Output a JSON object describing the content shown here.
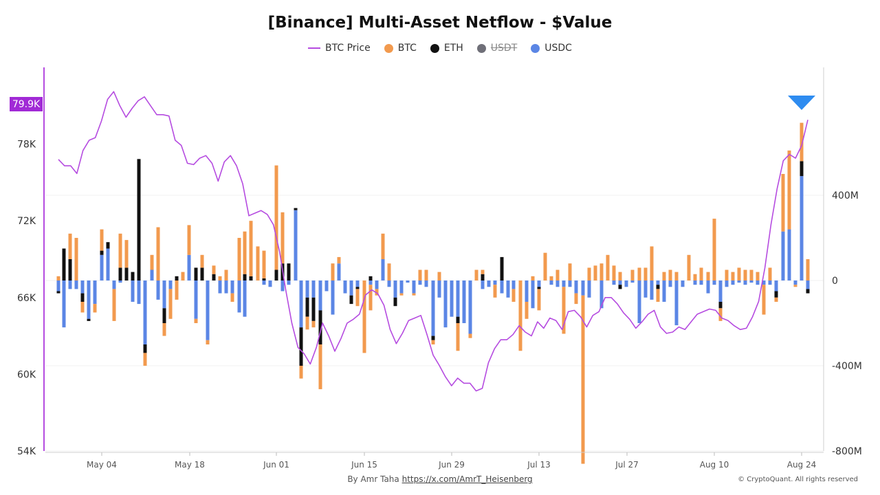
{
  "title": "[Binance] Multi-Asset Netflow - $Value",
  "legend": [
    {
      "label": "BTC Price",
      "kind": "line",
      "color": "#b54be0",
      "active": true
    },
    {
      "label": "BTC",
      "kind": "dot",
      "color": "#f29a4e",
      "active": true
    },
    {
      "label": "ETH",
      "kind": "dot",
      "color": "#111111",
      "active": true
    },
    {
      "label": "USDT",
      "kind": "dot",
      "color": "#6f6f78",
      "active": false
    },
    {
      "label": "USDC",
      "kind": "dot",
      "color": "#5b86e5",
      "active": true
    }
  ],
  "footer": {
    "author_prefix": "By Amr Taha",
    "author_link": "https://x.com/AmrT_Heisenberg",
    "copyright": "© CryptoQuant. All rights reserved"
  },
  "price_badge": "79.9K",
  "colors": {
    "btc": "#f29a4e",
    "eth": "#111111",
    "usdc": "#5b86e5",
    "price": "#b54be0",
    "marker": "#2e8cf0",
    "badge": "#a12ad6"
  },
  "chart_data": {
    "type": "bar",
    "title": "[Binance] Multi-Asset Netflow - $Value",
    "left_axis": {
      "label": "BTC Price",
      "range": [
        54000,
        84000
      ],
      "ticks": [
        "54K",
        "60K",
        "66K",
        "72K",
        "78K"
      ],
      "tick_values": [
        54000,
        60000,
        66000,
        72000,
        78000
      ]
    },
    "right_axis": {
      "label": "Netflow ($)",
      "range": [
        -800000000,
        1000000000
      ],
      "ticks": [
        "-800M",
        "-400M",
        "0",
        "400M"
      ],
      "tick_values": [
        -800000000,
        -400000000,
        0,
        400000000
      ]
    },
    "x_axis": {
      "start": "2024-04-22",
      "end": "2024-08-25",
      "ticks": [
        "May 04",
        "May 18",
        "Jun 01",
        "Jun 15",
        "Jun 29",
        "Jul 13",
        "Jul 27",
        "Aug 10",
        "Aug 24"
      ]
    },
    "series": [
      {
        "name": "BTC Price",
        "type": "line",
        "values": [
          76800,
          76300,
          76300,
          75700,
          77500,
          78300,
          78500,
          79800,
          81500,
          82100,
          81000,
          80100,
          80800,
          81400,
          81700,
          81000,
          80300,
          80300,
          80200,
          78300,
          77900,
          76500,
          76400,
          76900,
          77100,
          76500,
          75100,
          76600,
          77100,
          76300,
          74900,
          72400,
          72600,
          72800,
          72500,
          71700,
          69600,
          66600,
          64000,
          62100,
          61600,
          60800,
          62100,
          64000,
          63000,
          61800,
          62800,
          64000,
          64300,
          64700,
          66200,
          66600,
          66300,
          65400,
          63500,
          62400,
          63200,
          64200,
          64400,
          64600,
          63100,
          61500,
          60700,
          59800,
          59100,
          59700,
          59300,
          59300,
          58700,
          58900,
          60900,
          62000,
          62700,
          62700,
          63100,
          63800,
          63300,
          63000,
          64100,
          63600,
          64400,
          64200,
          63500,
          64900,
          65000,
          64500,
          63700,
          64600,
          64900,
          66000,
          66000,
          65500,
          64800,
          64300,
          63600,
          64100,
          64700,
          65000,
          63700,
          63200,
          63300,
          63700,
          63500,
          64100,
          64700,
          64900,
          65100,
          65000,
          64400,
          64200,
          63800,
          63500,
          63600,
          64500,
          65700,
          68300,
          71700,
          74500,
          76700,
          77200,
          76900,
          77900,
          79900
        ]
      },
      {
        "name": "BTC",
        "unit": "USD",
        "values": [
          20,
          -240,
          200,
          -300,
          330,
          -230,
          -210,
          -200,
          -190,
          -220,
          -220,
          160,
          60,
          300,
          -110,
          180,
          190,
          -180,
          -260,
          280,
          -210,
          -280,
          20,
          40,
          60,
          -20,
          60,
          120,
          180,
          -160,
          -90,
          -40,
          60,
          -70,
          120,
          220,
          90,
          60,
          70,
          30,
          440,
          200,
          -20,
          -130,
          -20,
          -90,
          -250,
          -100,
          -180,
          -140,
          -70,
          -60,
          -40,
          -100,
          -40,
          -200,
          -20,
          -30,
          -40,
          -330,
          0,
          -80,
          -70,
          -120,
          -20,
          -30,
          -100,
          -40,
          -100,
          -130,
          -310,
          -80,
          -60,
          -80,
          -50,
          -20,
          -20,
          -40,
          -20,
          -80,
          -10,
          -60,
          -160,
          -130,
          -90,
          60,
          -120,
          -20,
          -130,
          -30,
          -30,
          -70,
          -320,
          -30,
          -30,
          -10,
          -40,
          -20,
          -30,
          -80,
          -60,
          -30,
          -30,
          -60,
          -10,
          -60,
          -30,
          -10,
          -100,
          -140,
          -110,
          -60,
          -30,
          -20,
          -20,
          -230,
          -100,
          -30,
          -40,
          -30,
          -80,
          -40,
          -100,
          -20,
          360,
          340,
          -70,
          -140,
          -60,
          -10,
          -120,
          -70,
          -190,
          -50,
          -10,
          -70,
          -30,
          -30,
          -10,
          -70,
          -200,
          -170,
          -150,
          -220,
          -80,
          -20,
          -20,
          -10,
          -20,
          -20,
          -20,
          -20,
          -30,
          -30,
          -30,
          -40,
          -40,
          -40,
          -40,
          -40,
          -40,
          -40,
          -40,
          -30,
          -30,
          -20,
          -10
        ]
      },
      {
        "name": "ETH",
        "unit": "USD",
        "values": [
          0,
          0,
          0,
          0,
          0,
          0,
          0,
          0,
          0,
          0,
          0,
          0,
          0,
          0,
          0,
          0,
          0,
          0,
          0,
          0,
          0,
          0,
          0,
          0,
          0,
          0,
          0,
          0,
          0,
          0,
          0,
          0,
          0,
          0,
          0,
          0,
          0,
          0,
          0,
          0,
          0,
          0,
          0,
          0,
          0,
          0,
          0,
          0,
          0,
          0,
          0,
          0,
          0,
          0,
          0,
          0,
          0,
          0,
          0,
          0,
          0,
          0,
          0,
          0,
          0,
          0,
          0,
          0,
          0,
          0,
          0,
          0,
          0,
          0,
          0,
          0,
          0,
          0,
          0,
          0,
          0,
          0,
          0,
          0,
          0,
          0,
          0,
          0,
          0,
          0,
          0,
          0,
          0,
          0,
          0,
          0,
          0,
          0,
          0,
          0,
          0,
          0,
          0,
          0,
          0,
          0,
          0,
          0,
          0,
          0,
          0,
          0,
          0,
          0,
          0,
          0,
          0,
          0,
          0,
          0,
          0,
          0,
          0,
          0,
          0,
          0,
          0,
          0,
          0,
          0,
          0,
          0,
          0,
          0,
          0,
          0,
          0,
          0,
          0,
          0,
          0,
          0,
          0,
          0,
          0,
          0,
          0,
          0,
          0,
          0,
          0,
          0,
          0,
          0,
          0,
          0,
          0,
          0,
          0,
          0,
          0,
          0,
          0,
          0,
          0,
          0,
          0,
          0,
          0,
          0,
          0,
          0
        ]
      },
      {
        "name": "USDC",
        "unit": "USD",
        "values": [
          0,
          0,
          0,
          0,
          0,
          0,
          0,
          0,
          0,
          0,
          0,
          0,
          0,
          0,
          0,
          0,
          0,
          0,
          0,
          0,
          0,
          0,
          0,
          0,
          0,
          0,
          0,
          0,
          0,
          0,
          0,
          0,
          0,
          0,
          0,
          0,
          0,
          0,
          0,
          0,
          0,
          0,
          0,
          0,
          0,
          0,
          0,
          0,
          0,
          0,
          0,
          0,
          0,
          0,
          0,
          0,
          0,
          0,
          0,
          0,
          0,
          0,
          0,
          0,
          0,
          0,
          0,
          0,
          0,
          0,
          0,
          0,
          0,
          0,
          0,
          0,
          0,
          0,
          0,
          0,
          0,
          0,
          0,
          0,
          0,
          0,
          0,
          0,
          0,
          0,
          0,
          0,
          0,
          0,
          0,
          0,
          0,
          0,
          0,
          0,
          0,
          0,
          0,
          0,
          0,
          0,
          0,
          0,
          0,
          0,
          0,
          0,
          0,
          0,
          0,
          0,
          0,
          0,
          0,
          0,
          0,
          0,
          0,
          0,
          0,
          0,
          0,
          0,
          0,
          0,
          0,
          0,
          0,
          0,
          0,
          0,
          0,
          0,
          0,
          0,
          0,
          0,
          0,
          0,
          0,
          0,
          0,
          0,
          0,
          0,
          0,
          0,
          0,
          0,
          0,
          0,
          0,
          0,
          0,
          0,
          0,
          0,
          0,
          0,
          0,
          0,
          0,
          0,
          0,
          0,
          0,
          0
        ]
      }
    ],
    "bars": [
      {
        "btc": 20,
        "eth": -30,
        "usdc": -60
      },
      {
        "btc": -240,
        "eth": 150,
        "usdc": -220
      },
      {
        "btc": 240,
        "eth": 100,
        "usdc": -200
      },
      {
        "btc": -220,
        "eth": 160,
        "usdc": -190
      },
      {
        "btc": -10,
        "eth": -110,
        "usdc": -50
      },
      {
        "btc": -40,
        "eth": -20,
        "usdc": -80
      },
      {
        "btc": 280,
        "eth": 0,
        "usdc": -90
      },
      {
        "btc": -200,
        "eth": -70,
        "usdc": -60
      },
      {
        "btc": -30,
        "eth": -60,
        "usdc": -130
      },
      {
        "btc": -120,
        "eth": 0,
        "usdc": 130
      },
      {
        "btc": -10,
        "eth": 0,
        "usdc": -80
      },
      {
        "btc": -160,
        "eth": 30,
        "usdc": 230
      },
      {
        "btc": 10,
        "eth": 220,
        "usdc": 120
      },
      {
        "btc": -60,
        "eth": 0,
        "usdc": -10
      },
      {
        "btc": 130,
        "eth": 60,
        "usdc": 140
      },
      {
        "btc": -100,
        "eth": 0,
        "usdc": 0
      },
      {
        "btc": 80,
        "eth": 10,
        "usdc": 130
      },
      {
        "btc": 90,
        "eth": 0,
        "usdc": -100
      },
      {
        "btc": -20,
        "eth": 30,
        "usdc": -100
      },
      {
        "btc": 0,
        "eth": 570,
        "usdc": 0
      },
      {
        "btc": -120,
        "eth": -70,
        "usdc": -230
      },
      {
        "btc": 40,
        "eth": 60,
        "usdc": -20
      },
      {
        "btc": 140,
        "eth": 0,
        "usdc": 50
      },
      {
        "btc": 270,
        "eth": 0,
        "usdc": -50
      },
      {
        "btc": -40,
        "eth": -90,
        "usdc": -30
      },
      {
        "btc": 20,
        "eth": -60,
        "usdc": -40
      },
      {
        "btc": 50,
        "eth": 0,
        "usdc": 0
      },
      {
        "btc": -140,
        "eth": -40,
        "usdc": -50
      },
      {
        "btc": 10,
        "eth": 0,
        "usdc": 0
      },
      {
        "btc": 10,
        "eth": 0,
        "usdc": 0
      },
      {
        "btc": 30,
        "eth": 10,
        "usdc": 0
      },
      {
        "btc": 60,
        "eth": 0,
        "usdc": 0
      },
      {
        "btc": -20,
        "eth": 10,
        "usdc": 0
      },
      {
        "btc": -20,
        "eth": -40,
        "usdc": -60
      },
      {
        "btc": -170,
        "eth": 0,
        "usdc": 0
      },
      {
        "btc": -30,
        "eth": 0,
        "usdc": -100
      },
      {
        "btc": 140,
        "eth": 0,
        "usdc": 0
      },
      {
        "btc": -40,
        "eth": 0,
        "usdc": -90
      },
      {
        "btc": 140,
        "eth": 0,
        "usdc": 0
      },
      {
        "btc": 180,
        "eth": 10,
        "usdc": 0
      },
      {
        "btc": -80,
        "eth": 0,
        "usdc": 0
      },
      {
        "btc": -40,
        "eth": 0,
        "usdc": 0
      },
      {
        "btc": -20,
        "eth": 0,
        "usdc": 0
      },
      {
        "btc": -40,
        "eth": 0,
        "usdc": -20
      },
      {
        "btc": -20,
        "eth": -10,
        "usdc": 0
      },
      {
        "btc": -30,
        "eth": 0,
        "usdc": -70
      },
      {
        "btc": 40,
        "eth": -60,
        "usdc": -130
      },
      {
        "btc": -20,
        "eth": -40,
        "usdc": 0
      },
      {
        "btc": 330,
        "eth": 0,
        "usdc": 0
      },
      {
        "btc": 50,
        "eth": 60,
        "usdc": 0
      }
    ]
  }
}
